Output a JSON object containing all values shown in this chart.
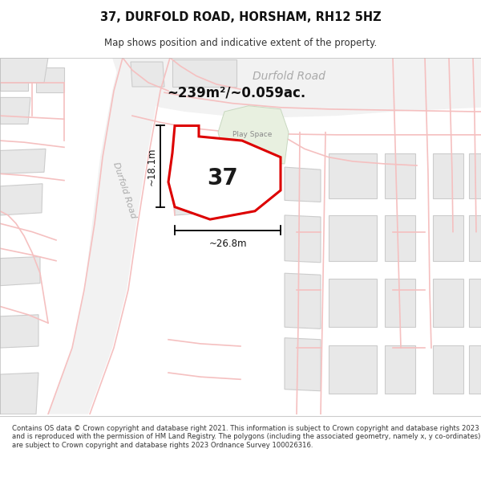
{
  "title": "37, DURFOLD ROAD, HORSHAM, RH12 5HZ",
  "subtitle": "Map shows position and indicative extent of the property.",
  "footer": "Contains OS data © Crown copyright and database right 2021. This information is subject to Crown copyright and database rights 2023 and is reproduced with the permission of HM Land Registry. The polygons (including the associated geometry, namely x, y co-ordinates) are subject to Crown copyright and database rights 2023 Ordnance Survey 100026316.",
  "bg_color": "#f7f7f7",
  "road_color": "#f5c0c0",
  "road_color2": "#e8a0a0",
  "building_fill": "#e8e8e8",
  "building_edge": "#cccccc",
  "green_fill": "#e8f0e0",
  "green_edge": "#c8d8c0",
  "highlight_fill": "#ffffff",
  "highlight_edge": "#dd0000",
  "area_label": "~239m²/~0.059ac.",
  "number_label": "37",
  "dim_width": "~26.8m",
  "dim_height": "~18.1m",
  "play_space_label": "Play Space",
  "durfold_road_top": "Durfold Road",
  "durfold_road_left": "Durfold Road"
}
